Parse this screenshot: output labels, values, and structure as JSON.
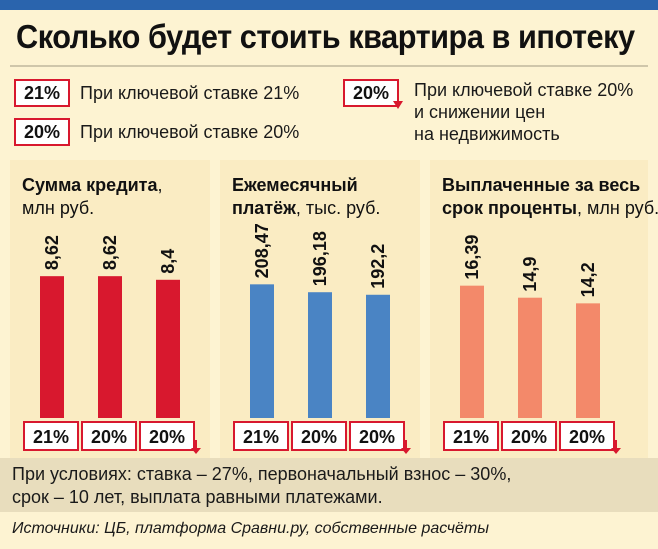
{
  "title": "Сколько будет стоить квартира в ипотеку",
  "legend": [
    {
      "tag": "21%",
      "text": "При ключевой ставке 21%"
    },
    {
      "tag": "20%",
      "text": "При ключевой ставке 20%"
    },
    {
      "tag": "20%",
      "text_lines": [
        "При ключевой ставке 20%",
        "и снижении цен",
        "на недвижимость"
      ]
    }
  ],
  "colors": {
    "red": "#d8182e",
    "blue": "#4a84c4",
    "salmon": "#f3896a",
    "panel_bg": "#faecc3",
    "page_bg": "#fdf3d2"
  },
  "chart_data": [
    {
      "type": "bar",
      "title_bold": "Сумма кредита",
      "title_rest": ",",
      "unit": "млн руб.",
      "categories": [
        "21%",
        "20%",
        "20%"
      ],
      "values": [
        8.62,
        8.62,
        8.4
      ],
      "labels": [
        "8,62",
        "8,62",
        "8,4"
      ],
      "color": "#d8182e",
      "ylim": [
        0,
        13.25
      ]
    },
    {
      "type": "bar",
      "title_bold_lines": [
        "Ежемесячный",
        "платёж"
      ],
      "title_rest": ", тыс. руб.",
      "categories": [
        "21%",
        "20%",
        "20%"
      ],
      "values": [
        208.47,
        196.18,
        192.2
      ],
      "labels": [
        "208,47",
        "196,18",
        "192,2"
      ],
      "color": "#4a84c4",
      "ylim": [
        0,
        340
      ]
    },
    {
      "type": "bar",
      "title_line1": "Выплаченные за весь",
      "title_bold2": "срок проценты",
      "title_rest": ", млн руб.",
      "categories": [
        "21%",
        "20%",
        "20%"
      ],
      "values": [
        16.39,
        14.9,
        14.2
      ],
      "labels": [
        "16,39",
        "14,9",
        "14,2"
      ],
      "color": "#f3896a",
      "ylim": [
        0,
        27
      ]
    }
  ],
  "conditions": [
    "При условиях: ставка – 27%, первоначальный взнос – 30%,",
    "срок – 10 лет, выплата равными платежами."
  ],
  "sources": "Источники: ЦБ, платформа Сравни.ру, собственные расчёты"
}
